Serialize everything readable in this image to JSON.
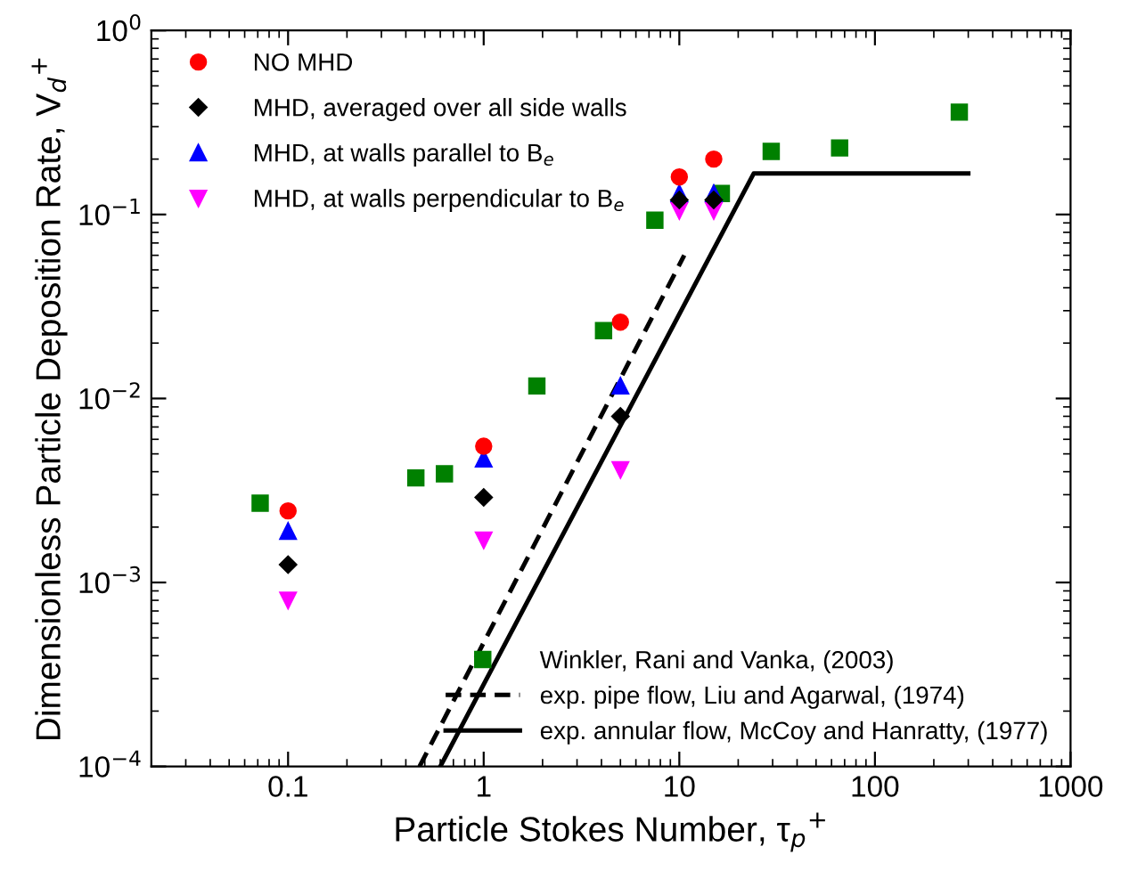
{
  "chart_data": {
    "type": "scatter",
    "xlabel": "Particle Stokes Number, τ$_{p}$$^{+}$",
    "ylabel": "Dimensionless Particle Deposition Rate, V$_{d}$$^{+}$",
    "log": "xy",
    "xlim": [
      0.02,
      1000
    ],
    "ylim": [
      0.0001,
      1
    ],
    "xticks": [
      0.1,
      1,
      10,
      100,
      1000
    ],
    "yticks": [
      {
        "value": 0.0001,
        "label": "10$^{−4}$"
      },
      {
        "value": 0.001,
        "label": "10$^{−3}$"
      },
      {
        "value": 0.01,
        "label": "10$^{−2}$"
      },
      {
        "value": 0.1,
        "label": "10$^{−1}$"
      },
      {
        "value": 1,
        "label": "10$^{0}$"
      }
    ],
    "grid": false,
    "legend": [
      "top left",
      "bottom right"
    ],
    "series": [
      {
        "name": "NO MHD",
        "color": "#ff0000",
        "marker": "circle",
        "x": [
          0.1,
          1,
          5,
          10,
          15
        ],
        "values": [
          0.00245,
          0.0055,
          0.026,
          0.16,
          0.2
        ]
      },
      {
        "name": "MHD, averaged over all side walls",
        "color": "#000000",
        "marker": "diamond",
        "x": [
          0.1,
          1,
          5,
          10,
          15
        ],
        "values": [
          0.00125,
          0.0029,
          0.008,
          0.12,
          0.12
        ]
      },
      {
        "name": "MHD, at walls parallel to B$_{e}$",
        "color": "#0000ff",
        "marker": "triangle",
        "x": [
          0.1,
          1,
          5,
          10,
          15
        ],
        "values": [
          0.0019,
          0.0047,
          0.0117,
          0.13,
          0.13
        ]
      },
      {
        "name": "MHD, at walls perpendicular to B$_{e}$",
        "color": "#ff00ff",
        "marker": "triangle_down",
        "x": [
          0.1,
          1,
          5,
          10,
          15
        ],
        "values": [
          0.0008,
          0.0017,
          0.0041,
          0.105,
          0.105
        ]
      },
      {
        "name": "Winkler, Rani and Vanka, (2003)",
        "color": "#008000",
        "marker": "square",
        "x": [
          0.072,
          0.45,
          0.63,
          1.87,
          4.1,
          7.5,
          16.4,
          29.5,
          66,
          270
        ],
        "values": [
          0.0027,
          0.0037,
          0.0039,
          0.0117,
          0.0234,
          0.093,
          0.13,
          0.22,
          0.23,
          0.36
        ]
      },
      {
        "name": "exp. pipe flow, Liu and Agarwal, (1974)",
        "type": "line",
        "line_style": "dashed",
        "color": "#000000",
        "x": [
          0.47,
          10.6
        ],
        "values": [
          0.0001,
          0.06
        ]
      },
      {
        "name": "exp. annular flow, McCoy and Hanratty, (1977)",
        "type": "line",
        "line_style": "solid",
        "color": "#000000",
        "x": [
          0.6,
          24,
          300
        ],
        "values": [
          0.0001,
          0.167,
          0.167
        ]
      }
    ]
  }
}
